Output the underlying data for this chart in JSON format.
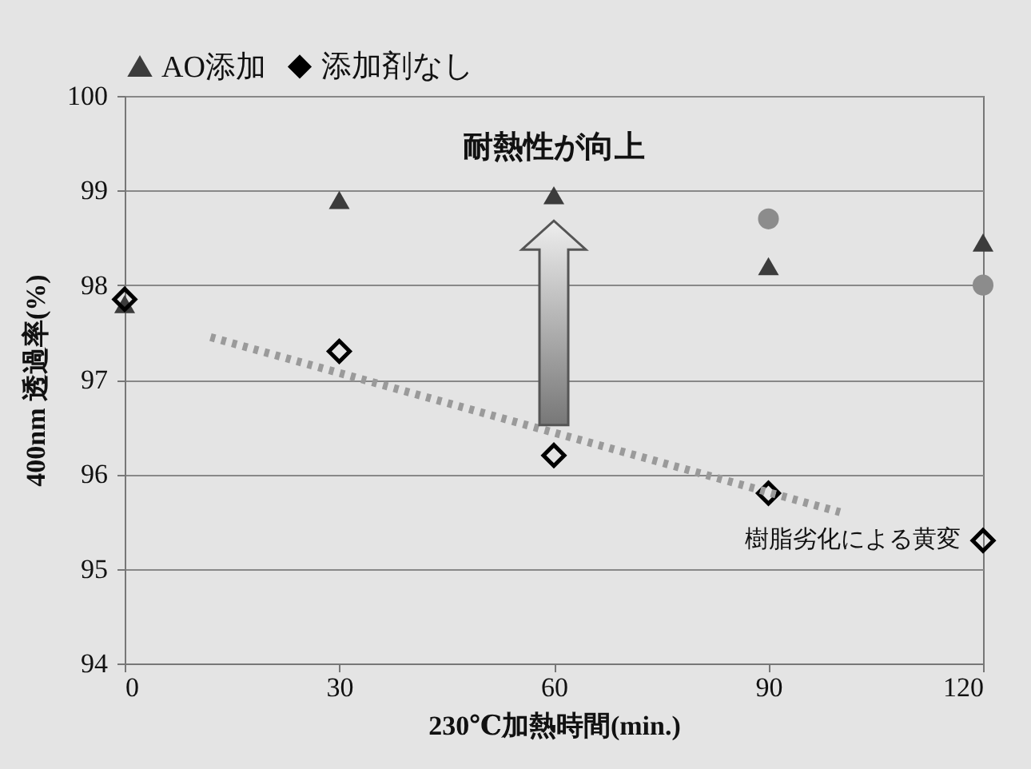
{
  "chart_data": {
    "type": "scatter",
    "xlabel": "230℃加熱時間(min.)",
    "ylabel": "400nm 透過率(%)",
    "x": [
      0,
      30,
      60,
      90,
      120
    ],
    "xlim": [
      0,
      120
    ],
    "xticks": [
      0,
      30,
      60,
      90,
      120
    ],
    "ylim": [
      94,
      100
    ],
    "yticks": [
      94,
      95,
      96,
      97,
      98,
      99,
      100
    ],
    "grid": "y",
    "legend": "top",
    "series": [
      {
        "color": "#8c8c8c",
        "marker": "circle",
        "values": [
          null,
          null,
          null,
          98.7,
          98.0
        ]
      },
      {
        "name": "AO添加",
        "color": "#3c3c3c",
        "marker": "triangle",
        "values": [
          97.8,
          98.9,
          98.95,
          98.2,
          98.45
        ]
      },
      {
        "name": "添加剤なし",
        "color": "#000000",
        "marker": "diamond",
        "values": [
          97.85,
          97.3,
          96.2,
          95.8,
          95.3
        ]
      },
      {
        "type": "line",
        "x": [
          12,
          100
        ],
        "color": "#9a9a9a",
        "line_style": "dotted",
        "marker": "none",
        "values": [
          97.45,
          95.6
        ]
      }
    ],
    "annotations": [
      "耐熱性が向上",
      "樹脂劣化による黄変"
    ]
  }
}
